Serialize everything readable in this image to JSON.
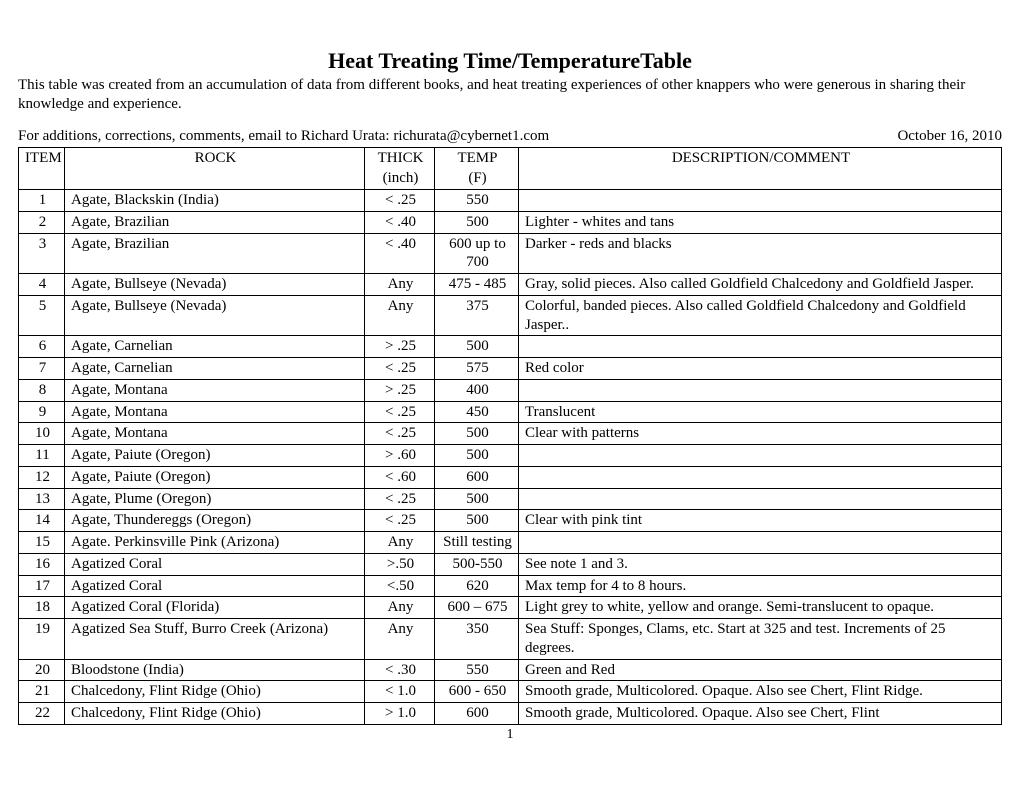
{
  "title": "Heat Treating Time/TemperatureTable",
  "intro": "This table was created from an accumulation of data from different books, and heat treating experiences of other knappers who were generous in sharing their knowledge and experience.",
  "contactLine": "For additions, corrections, comments, email to Richard Urata: richurata@cybernet1.com",
  "date": "October 16, 2010",
  "cols": {
    "item": "ITEM",
    "rock": "ROCK",
    "thick": "THICK",
    "thickUnit": "(inch)",
    "temp": "TEMP",
    "tempUnit": "(F)",
    "desc": "DESCRIPTION/COMMENT"
  },
  "rows": [
    {
      "n": "1",
      "rock": "Agate, Blackskin (India)",
      "thick": "< .25",
      "temp": "550",
      "desc": ""
    },
    {
      "n": "2",
      "rock": "Agate, Brazilian",
      "thick": "< .40",
      "temp": "500",
      "desc": "Lighter - whites and tans"
    },
    {
      "n": "3",
      "rock": "Agate, Brazilian",
      "thick": "< .40",
      "temp": "600 up to 700",
      "desc": "Darker - reds and blacks"
    },
    {
      "n": "4",
      "rock": "Agate, Bullseye (Nevada)",
      "thick": "Any",
      "temp": "475 - 485",
      "desc": "Gray, solid pieces. Also called Goldfield Chalcedony and Goldfield Jasper."
    },
    {
      "n": "5",
      "rock": "Agate, Bullseye (Nevada)",
      "thick": "Any",
      "temp": "375",
      "desc": "Colorful, banded pieces. Also called Goldfield Chalcedony and Goldfield Jasper.."
    },
    {
      "n": "6",
      "rock": "Agate, Carnelian",
      "thick": "> .25",
      "temp": "500",
      "desc": ""
    },
    {
      "n": "7",
      "rock": "Agate, Carnelian",
      "thick": "< .25",
      "temp": "575",
      "desc": "Red color"
    },
    {
      "n": "8",
      "rock": "Agate, Montana",
      "thick": "> .25",
      "temp": "400",
      "desc": ""
    },
    {
      "n": "9",
      "rock": "Agate, Montana",
      "thick": "< .25",
      "temp": "450",
      "desc": "Translucent"
    },
    {
      "n": "10",
      "rock": "Agate, Montana",
      "thick": "< .25",
      "temp": "500",
      "desc": "Clear with patterns"
    },
    {
      "n": "11",
      "rock": "Agate, Paiute (Oregon)",
      "thick": "> .60",
      "temp": "500",
      "desc": ""
    },
    {
      "n": "12",
      "rock": "Agate, Paiute (Oregon)",
      "thick": "< .60",
      "temp": "600",
      "desc": ""
    },
    {
      "n": "13",
      "rock": "Agate, Plume (Oregon)",
      "thick": "< .25",
      "temp": "500",
      "desc": ""
    },
    {
      "n": "14",
      "rock": "Agate, Thundereggs (Oregon)",
      "thick": "< .25",
      "temp": "500",
      "desc": "Clear with pink tint"
    },
    {
      "n": "15",
      "rock": "Agate. Perkinsville Pink (Arizona)",
      "thick": "Any",
      "temp": "Still testing",
      "desc": ""
    },
    {
      "n": "16",
      "rock": "Agatized Coral",
      "thick": ">.50",
      "temp": "500-550",
      "desc": "See note 1 and 3."
    },
    {
      "n": "17",
      "rock": "Agatized Coral",
      "thick": "<.50",
      "temp": "620",
      "desc": "Max temp for 4 to 8 hours."
    },
    {
      "n": "18",
      "rock": "Agatized Coral (Florida)",
      "thick": "Any",
      "temp": "600 – 675",
      "desc": "Light grey to white, yellow and orange.  Semi-translucent to opaque."
    },
    {
      "n": "19",
      "rock": "Agatized Sea Stuff, Burro Creek (Arizona)",
      "thick": "Any",
      "temp": "350",
      "desc": "Sea Stuff: Sponges, Clams, etc. Start at 325 and test.  Increments of 25 degrees."
    },
    {
      "n": "20",
      "rock": "Bloodstone (India)",
      "thick": "< .30",
      "temp": "550",
      "desc": "Green and Red"
    },
    {
      "n": "21",
      "rock": "Chalcedony, Flint Ridge (Ohio)",
      "thick": "< 1.0",
      "temp": "600 - 650",
      "desc": "Smooth grade, Multicolored.  Opaque.  Also see Chert, Flint Ridge."
    },
    {
      "n": "22",
      "rock": "Chalcedony, Flint Ridge (Ohio)",
      "thick": "> 1.0",
      "temp": "600",
      "desc": "Smooth grade, Multicolored.  Opaque.  Also see Chert, Flint"
    }
  ],
  "pageNumber": "1"
}
